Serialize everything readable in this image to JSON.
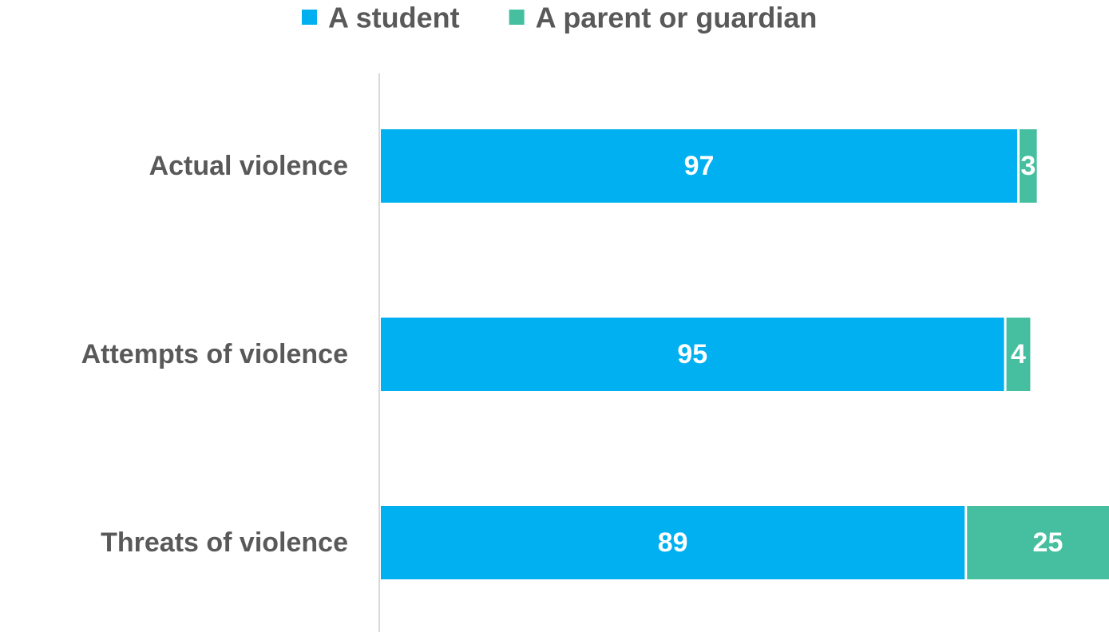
{
  "chart_data": {
    "type": "bar",
    "orientation": "horizontal",
    "stacked": true,
    "categories": [
      "Actual violence",
      "Attempts of violence",
      "Threats of violence"
    ],
    "series": [
      {
        "name": "A student",
        "values": [
          97,
          95,
          89
        ],
        "color": "#00B0F0"
      },
      {
        "name": "A parent or guardian",
        "values": [
          3,
          4,
          25
        ],
        "color": "#45BFA0"
      }
    ],
    "title": "",
    "xlabel": "",
    "ylabel": "",
    "xlim": [
      0,
      111
    ],
    "grid": false,
    "legend": "top-center",
    "axis_color": "#D9D9D9"
  }
}
